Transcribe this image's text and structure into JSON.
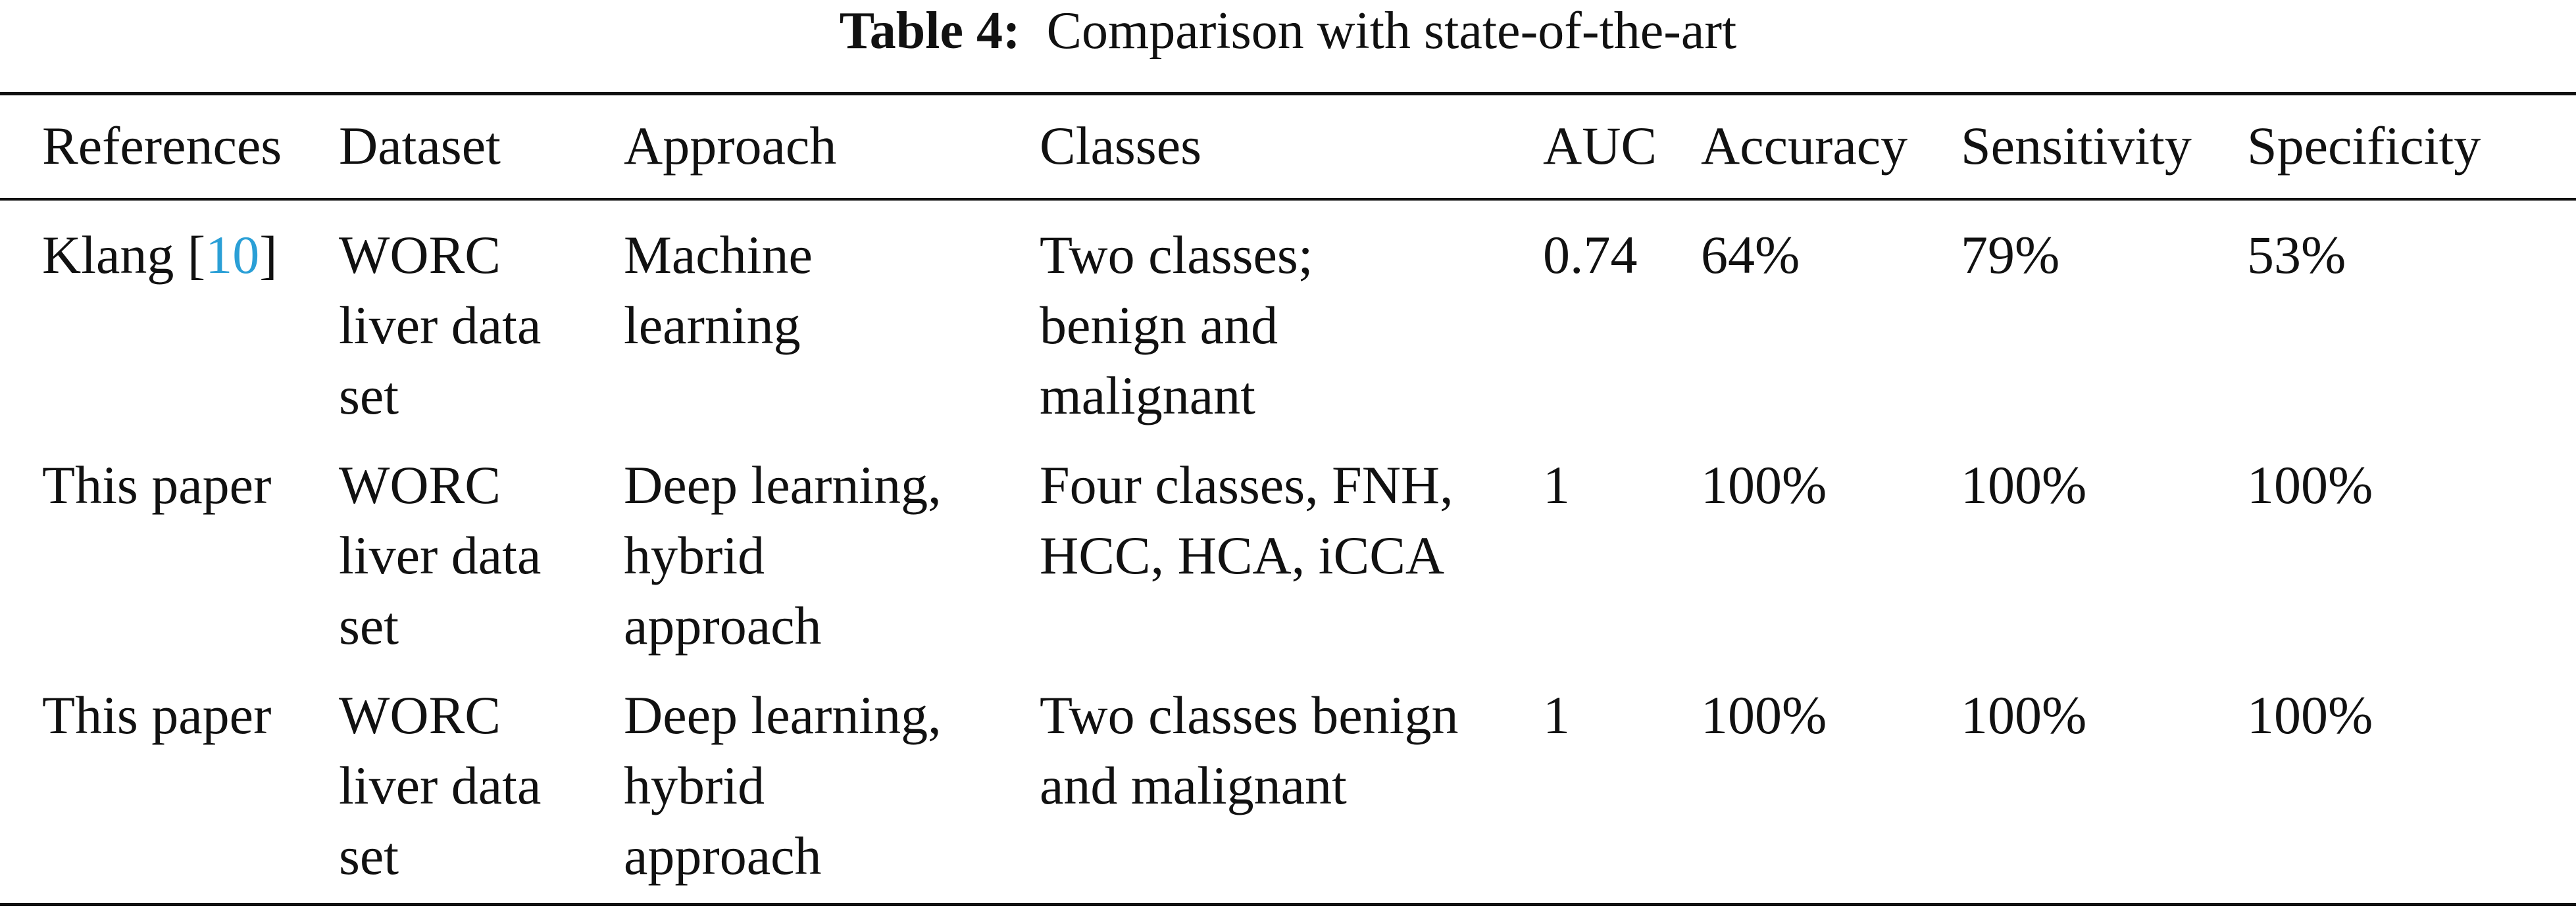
{
  "caption": {
    "label": "Table 4:",
    "title": "Comparison with state-of-the-art"
  },
  "table": {
    "headers": [
      "References",
      "Dataset",
      "Approach",
      "Classes",
      "AUC",
      "Accuracy",
      "Sensitivity",
      "Specificity"
    ],
    "rows": [
      {
        "ref_name": "Klang [",
        "ref_cite": "10",
        "ref_close": "]",
        "dataset": "WORC\nliver data\nset",
        "approach": "Machine\nlearning",
        "classes": "Two classes;\nbenign and\nmalignant",
        "auc": "0.74",
        "accuracy": "64%",
        "sensitivity": "79%",
        "specificity": "53%"
      },
      {
        "ref_name": "This paper",
        "dataset": "WORC\nliver data\nset",
        "approach": "Deep learning,\nhybrid\napproach",
        "classes": "Four classes, FNH,\nHCC, HCA, iCCA",
        "auc": "1",
        "accuracy": "100%",
        "sensitivity": "100%",
        "specificity": "100%"
      },
      {
        "ref_name": "This paper",
        "dataset": "WORC\nliver data\nset",
        "approach": "Deep learning,\nhybrid\napproach",
        "classes": "Two classes benign\nand malignant",
        "auc": "1",
        "accuracy": "100%",
        "sensitivity": "100%",
        "specificity": "100%"
      }
    ]
  }
}
